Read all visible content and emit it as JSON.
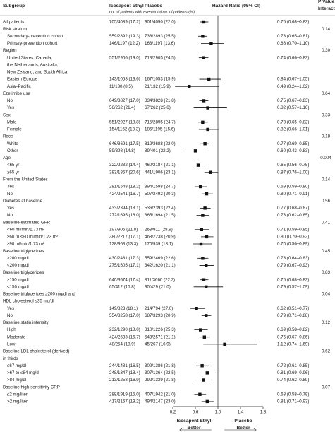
{
  "chart_data": {
    "type": "forest",
    "header": {
      "subgroup": "Subgroup",
      "ico": "Icosapent Ethyl",
      "pla": "Placebo",
      "hr": "Hazard Ratio (95% CI)",
      "p": [
        "P Value for",
        "Interaction"
      ],
      "note": "no. of patients with event/total no. of patients (%)"
    },
    "all": {
      "name": "All patients",
      "ico": "705/4089 (17.2)",
      "pla": "901/4090 (22.0)",
      "hr_label": "0.75 (0.68–0.83)",
      "hr": 0.75,
      "lo": 0.68,
      "hi": 0.83
    },
    "groups": [
      {
        "name": "Risk stratum",
        "p": "0.14",
        "rows": [
          {
            "name": "Secondary-prevention cohort",
            "ico": "559/2892 (19.3)",
            "pla": "738/2893 (25.5)",
            "hr_label": "0.73 (0.65–0.81)",
            "hr": 0.73,
            "lo": 0.65,
            "hi": 0.81
          },
          {
            "name": "Primary-prevention cohort",
            "ico": "146/1197 (12.2)",
            "pla": "163/1197 (13.6)",
            "hr_label": "0.88 (0.70–1.10)",
            "hr": 0.88,
            "lo": 0.7,
            "hi": 1.1
          }
        ]
      },
      {
        "name": "Region",
        "p": "0.30",
        "rows": [
          {
            "name": [
              "United States, Canada,",
              "the Netherlands, Australia,",
              "New Zealand, and South Africa"
            ],
            "ico": "551/2906 (19.0)",
            "pla": "713/2905 (24.5)",
            "hr_label": "0.74 (0.66–0.83)",
            "hr": 0.74,
            "lo": 0.66,
            "hi": 0.83
          },
          {
            "name": "Eastern Europe",
            "ico": "143/1053 (13.6)",
            "pla": "167/1053 (15.9)",
            "hr_label": "0.84 (0.67–1.05)",
            "hr": 0.84,
            "lo": 0.67,
            "hi": 1.05
          },
          {
            "name": "Asia–Pacific",
            "ico": "11/130 (8.5)",
            "pla": "21/132 (15.9)",
            "hr_label": "0.49 (0.24–1.02)",
            "hr": 0.49,
            "lo": 0.24,
            "hi": 1.02
          }
        ]
      },
      {
        "name": "Ezetimibe use",
        "p": "0.64",
        "rows": [
          {
            "name": "No",
            "ico": "649/3827 (17.0)",
            "pla": "834/3828 (21.8)",
            "hr_label": "0.75 (0.67–0.83)",
            "hr": 0.75,
            "lo": 0.67,
            "hi": 0.83
          },
          {
            "name": "Yes",
            "ico": "56/262 (21.4)",
            "pla": "67/262 (25.6)",
            "hr_label": "0.82 (0.57–1.16)",
            "hr": 0.82,
            "lo": 0.57,
            "hi": 1.16
          }
        ]
      },
      {
        "name": "Sex",
        "p": "0.33",
        "rows": [
          {
            "name": "Male",
            "ico": "551/2927 (18.8)",
            "pla": "715/2895 (24.7)",
            "hr_label": "0.73 (0.65–0.82)",
            "hr": 0.73,
            "lo": 0.65,
            "hi": 0.82
          },
          {
            "name": "Female",
            "ico": "154/1162 (13.3)",
            "pla": "186/1195 (15.6)",
            "hr_label": "0.82 (0.66–1.01)",
            "hr": 0.82,
            "lo": 0.66,
            "hi": 1.01
          }
        ]
      },
      {
        "name": "Race",
        "p": "0.18",
        "rows": [
          {
            "name": "White",
            "ico": "646/3691 (17.5)",
            "pla": "812/3688 (22.0)",
            "hr_label": "0.77 (0.69–0.85)",
            "hr": 0.77,
            "lo": 0.69,
            "hi": 0.85
          },
          {
            "name": "Other",
            "ico": "59/398 (14.8)",
            "pla": "89/401 (22.2)",
            "hr_label": "0.60 (0.43–0.83)",
            "hr": 0.6,
            "lo": 0.43,
            "hi": 0.83
          }
        ]
      },
      {
        "name": "Age",
        "p": "0.004",
        "rows": [
          {
            "name": "<65 yr",
            "ico": "322/2232 (14.4)",
            "pla": "460/2184 (21.1)",
            "hr_label": "0.65 (0.56–0.75)",
            "hr": 0.65,
            "lo": 0.56,
            "hi": 0.75
          },
          {
            "name": "≥65 yr",
            "ico": "383/1857 (20.6)",
            "pla": "441/1906 (23.1)",
            "hr_label": "0.87 (0.76–1.00)",
            "hr": 0.87,
            "lo": 0.76,
            "hi": 1.0
          }
        ]
      },
      {
        "name": "From the United States",
        "p": "0.14",
        "rows": [
          {
            "name": "Yes",
            "ico": "281/1548 (18.2)",
            "pla": "394/1598 (24.7)",
            "hr_label": "0.69 (0.59–0.80)",
            "hr": 0.69,
            "lo": 0.59,
            "hi": 0.8
          },
          {
            "name": "No",
            "ico": "424/2541 (16.7)",
            "pla": "507/2492 (20.3)",
            "hr_label": "0.80 (0.71–0.91)",
            "hr": 0.8,
            "lo": 0.71,
            "hi": 0.91
          }
        ]
      },
      {
        "name": "Diabetes at baseline",
        "p": "0.56",
        "rows": [
          {
            "name": "Yes",
            "ico": "433/2394 (18.1)",
            "pla": "536/2393 (22.4)",
            "hr_label": "0.77 (0.68–0.87)",
            "hr": 0.77,
            "lo": 0.68,
            "hi": 0.87
          },
          {
            "name": "No",
            "ico": "272/1695 (16.0)",
            "pla": "365/1694 (21.5)",
            "hr_label": "0.73 (0.62–0.85)",
            "hr": 0.73,
            "lo": 0.62,
            "hi": 0.85
          }
        ]
      },
      {
        "name": "Baseline estimated GFR",
        "p": "0.41",
        "rows": [
          {
            "name": "<60 ml/min/1.73 m²",
            "ico": "197/905 (21.8)",
            "pla": "263/911 (28.9)",
            "hr_label": "0.71 (0.59–0.85)",
            "hr": 0.71,
            "lo": 0.59,
            "hi": 0.85
          },
          {
            "name": "≥60 to <90 ml/min/1.73 m²",
            "ico": "380/2217 (17.1)",
            "pla": "468/2238 (20.9)",
            "hr_label": "0.80 (0.70–0.92)",
            "hr": 0.8,
            "lo": 0.7,
            "hi": 0.92
          },
          {
            "name": "≥90 ml/min/1.73 m²",
            "ico": "128/963 (13.3)",
            "pla": "170/939 (18.1)",
            "hr_label": "0.70 (0.56–0.89)",
            "hr": 0.7,
            "lo": 0.56,
            "hi": 0.89
          }
        ]
      },
      {
        "name": "Baseline triglycerides",
        "p": "0.45",
        "rows": [
          {
            "name": "≥200 mg/dl",
            "ico": "430/2481 (17.3)",
            "pla": "559/2469 (22.6)",
            "hr_label": "0.73 (0.64–0.83)",
            "hr": 0.73,
            "lo": 0.64,
            "hi": 0.83
          },
          {
            "name": "<200 mg/dl",
            "ico": "275/1605 (17.1)",
            "pla": "342/1620 (21.1)",
            "hr_label": "0.79 (0.67–0.93)",
            "hr": 0.79,
            "lo": 0.67,
            "hi": 0.93
          }
        ]
      },
      {
        "name": "Baseline triglycerides",
        "p": "0.83",
        "rows": [
          {
            "name": "≥150 mg/dl",
            "ico": "640/3674 (17.4)",
            "pla": "811/3660 (22.2)",
            "hr_label": "0.75 (0.68–0.83)",
            "hr": 0.75,
            "lo": 0.68,
            "hi": 0.83
          },
          {
            "name": "<150 mg/dl",
            "ico": "65/412 (15.8)",
            "pla": "90/429 (21.0)",
            "hr_label": "0.79 (0.57–1.09)",
            "hr": 0.79,
            "lo": 0.57,
            "hi": 1.09
          }
        ]
      },
      {
        "name": [
          "Baseline triglycerides ≥200 mg/dl and",
          "HDL cholesterol ≤35 mg/dl"
        ],
        "p": "0.04",
        "rows": [
          {
            "name": "Yes",
            "ico": "149/823 (18.1)",
            "pla": "214/794 (27.0)",
            "hr_label": "0.62 (0.51–0.77)",
            "hr": 0.62,
            "lo": 0.51,
            "hi": 0.77
          },
          {
            "name": "No",
            "ico": "554/3258 (17.0)",
            "pla": "687/3293 (20.9)",
            "hr_label": "0.79 (0.71–0.88)",
            "hr": 0.79,
            "lo": 0.71,
            "hi": 0.88
          }
        ]
      },
      {
        "name": "Baseline statin intensity",
        "p": "0.12",
        "rows": [
          {
            "name": "High",
            "ico": "232/1290 (18.0)",
            "pla": "310/1226 (25.3)",
            "hr_label": "0.69 (0.58–0.82)",
            "hr": 0.69,
            "lo": 0.58,
            "hi": 0.82
          },
          {
            "name": "Moderate",
            "ico": "424/2533 (16.7)",
            "pla": "543/2571 (21.1)",
            "hr_label": "0.76 (0.67–0.86)",
            "hr": 0.76,
            "lo": 0.67,
            "hi": 0.86
          },
          {
            "name": "Low",
            "ico": "48/254 (18.9)",
            "pla": "45/267 (16.9)",
            "hr_label": "1.12 (0.74–1.69)",
            "hr": 1.12,
            "lo": 0.74,
            "hi": 1.69
          }
        ]
      },
      {
        "name": [
          "Baseline LDL cholesterol (derived)",
          "in thirds"
        ],
        "p": "0.62",
        "rows": [
          {
            "name": "≤67 mg/dl",
            "ico": "244/1481 (16.5)",
            "pla": "302/1386 (21.8)",
            "hr_label": "0.72 (0.61–0.85)",
            "hr": 0.72,
            "lo": 0.61,
            "hi": 0.85
          },
          {
            "name": ">67 to ≤84 mg/dl",
            "ico": "248/1347 (18.4)",
            "pla": "307/1364 (22.5)",
            "hr_label": "0.81 (0.69–0.96)",
            "hr": 0.81,
            "lo": 0.69,
            "hi": 0.96
          },
          {
            "name": ">84 mg/dl",
            "ico": "213/1258 (16.9)",
            "pla": "292/1339 (21.8)",
            "hr_label": "0.74 (0.62–0.89)",
            "hr": 0.74,
            "lo": 0.62,
            "hi": 0.89
          }
        ]
      },
      {
        "name": "Baseline high-sensitivity CRP",
        "p": "0.07",
        "rows": [
          {
            "name": "≤2 mg/liter",
            "ico": "288/1919 (15.0)",
            "pla": "407/1942 (21.0)",
            "hr_label": "0.68 (0.58–0.79)",
            "hr": 0.68,
            "lo": 0.58,
            "hi": 0.79
          },
          {
            "name": ">2 mg/liter",
            "ico": "417/2167 (19.2)",
            "pla": "494/2147 (23.0)",
            "hr_label": "0.81 (0.71–0.93)",
            "hr": 0.81,
            "lo": 0.71,
            "hi": 0.93
          }
        ]
      }
    ],
    "xlim": [
      0.2,
      1.8
    ],
    "xticks": [
      0.2,
      0.6,
      {
        "value": 1,
        "label": "1.0"
      },
      1.4,
      1.8
    ],
    "x_labels": [
      [
        "Icosapent Ethyl",
        "Better"
      ],
      [
        "Placebo",
        "Better"
      ]
    ]
  }
}
